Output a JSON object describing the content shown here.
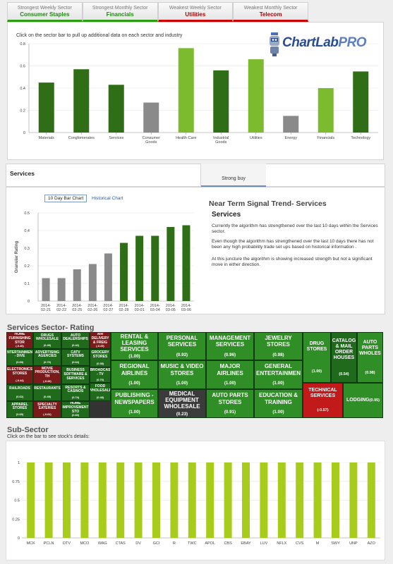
{
  "tabs": [
    {
      "caption": "Strongest Weekly Sector",
      "value": "Consumer Staples",
      "kind": "strong"
    },
    {
      "caption": "Strongest Monthly Sector",
      "value": "Financials",
      "kind": "strong"
    },
    {
      "caption": "Weakest Weekly Sector",
      "value": "Utilities",
      "kind": "weak"
    },
    {
      "caption": "Weakest Monthly Sector",
      "value": "Telecom",
      "kind": "weak"
    }
  ],
  "sector_panel": {
    "hint": "Click on the sector bar to pull up additional data on each sector and industry"
  },
  "logo": {
    "text_main": "ChartLab",
    "text_accent": "PRO"
  },
  "services_header": "Services",
  "strong_buy_tab": "Strong buy",
  "bar_chart_button": "10 Day Bar Chart",
  "historical_link": "Historical Chart",
  "near_term": {
    "title": "Near Term Signal Trend- Services",
    "subtitle": "Services",
    "p1": "Currently the algorithm has strengthened over the last 10 days within the Services sector.",
    "p2": "Even though the algorithm has strengthened over the last 10 days there has not been any high probability trade set ups based on historical information .",
    "p3": "At this juncture the algorithm is showing increased strength but not a significant move in either direction."
  },
  "rating_title": "Services Sector- Rating",
  "subsector_title": "Sub-Sector",
  "subsector_hint": "Click on the bar to see stock's details:",
  "colors": {
    "dark_green": "#2f6e17",
    "light_green": "#8cc63f",
    "grey": "#8a8a8a",
    "lime": "#a8cc1c"
  },
  "chart_data": [
    {
      "type": "bar",
      "categories": [
        "Materials",
        "Conglomerates",
        "Services",
        "Consumer Goods",
        "Health Care",
        "Industrial Goods",
        "Utilities",
        "Energy",
        "Financials",
        "Technology"
      ],
      "values": [
        0.45,
        0.57,
        0.43,
        0.27,
        0.76,
        0.56,
        0.66,
        0.15,
        0.4,
        0.55
      ],
      "bar_colors": [
        "#2f6e17",
        "#2f6e17",
        "#2f6e17",
        "#8a8a8a",
        "#7cbb2e",
        "#2f6e17",
        "#7cbb2e",
        "#8a8a8a",
        "#7cbb2e",
        "#2f6e17"
      ],
      "ylim": [
        0,
        0.8
      ],
      "yticks": [
        "0",
        "0.2",
        "0.4",
        "0.6",
        "0.8"
      ],
      "title": "",
      "xlabel": "",
      "ylabel": ""
    },
    {
      "type": "bar",
      "categories": [
        "2014-02-21",
        "2014-02-22",
        "2014-02-25",
        "2014-02-26",
        "2014-02-27",
        "2014-02-28",
        "2014-03-01",
        "2014-03-04",
        "2014-03-05",
        "2014-03-06"
      ],
      "tick_top": [
        "2014-",
        "2014-",
        "2014-",
        "2014-",
        "2014-",
        "2014-",
        "2014-",
        "2014-",
        "2014-",
        "2014-"
      ],
      "tick_bottom": [
        "02-21",
        "02-22",
        "02-25",
        "02-26",
        "02-27",
        "02-28",
        "03-01",
        "03-04",
        "03-05",
        "03-06"
      ],
      "values": [
        0.13,
        0.13,
        0.18,
        0.21,
        0.27,
        0.33,
        0.37,
        0.37,
        0.42,
        0.43
      ],
      "bar_colors": [
        "#8a8a8a",
        "#8a8a8a",
        "#8a8a8a",
        "#8a8a8a",
        "#8a8a8a",
        "#2f6e17",
        "#2f6e17",
        "#2f6e17",
        "#2f6e17",
        "#2f6e17"
      ],
      "ylim": [
        0,
        0.5
      ],
      "yticks": [
        "0",
        "0.1",
        "0.2",
        "0.3",
        "0.4",
        "0.5"
      ],
      "ylabel": "Granular Rating",
      "title": "",
      "xlabel": ""
    },
    {
      "type": "bar",
      "categories": [
        "MCK",
        "PCLN",
        "DTV",
        "MCO",
        "WAG",
        "CTAS",
        "DV",
        "GCI",
        "R",
        "TWC",
        "APOL",
        "CBS",
        "EBAY",
        "LUV",
        "NFLX",
        "CVS",
        "M",
        "SWY",
        "UNP",
        "AZO"
      ],
      "values": [
        1,
        1,
        1,
        1,
        1,
        1,
        1,
        1,
        1,
        1,
        1,
        1,
        1,
        1,
        1,
        1,
        1,
        1,
        1,
        1
      ],
      "ylim": [
        0,
        1
      ],
      "yticks": [
        "0",
        "0.25",
        "0.5",
        "0.75",
        "1"
      ],
      "title": "",
      "xlabel": "",
      "ylabel": ""
    }
  ],
  "treemap": [
    {
      "label": "HOME FURNISHING STOR",
      "rating": "(-0.46)",
      "color": "red-dark"
    },
    {
      "label": "DRUGS WHOLESALE",
      "rating": "(0.49)",
      "color": "g-dark"
    },
    {
      "label": "AUTO DEALERSHIPS",
      "rating": "(0.42)",
      "color": "g-dark"
    },
    {
      "label": "AIR DELIVERY & FREIG",
      "rating": "(-0.25)",
      "color": "red-dark"
    },
    {
      "label": "ENTERTAINMENT - DIVE",
      "rating": "(0.69)",
      "color": "g-dark"
    },
    {
      "label": "ADVERTISING AGENCIES",
      "rating": "(0.70)",
      "color": "g-dark"
    },
    {
      "label": "CATV SYSTEMS",
      "rating": "(0.64)",
      "color": "g-dark"
    },
    {
      "label": "GROCERY STORES",
      "rating": "(0.38)",
      "color": "g-dark"
    },
    {
      "label": "ELECTRONICS STORES",
      "rating": "(-0.44)",
      "color": "red-dark"
    },
    {
      "label": "MOVIE PRODUCTION, TH",
      "rating": "(-0.26)",
      "color": "red-dark"
    },
    {
      "label": "BUSINESS SOFTWARE & SERVICES",
      "rating": "",
      "color": "g-dark"
    },
    {
      "label": "BROADCAS - TV",
      "rating": "(0.70)",
      "color": "g-dark"
    },
    {
      "label": "RAILROADS",
      "rating": "(0.62)",
      "color": "g-dark"
    },
    {
      "label": "RESTAURANTS",
      "rating": "(0.49)",
      "color": "g-dark"
    },
    {
      "label": "RESORTS & CASINOS",
      "rating": "(0.74)",
      "color": "g-dark"
    },
    {
      "label": "FOOD WHOLESALE",
      "rating": "(0.48)",
      "color": "g-dark"
    },
    {
      "label": "APPAREL STORES",
      "rating": "(0.69)",
      "color": "g-dark"
    },
    {
      "label": "SPECIALTY EATERIES",
      "rating": "(-0.62)",
      "color": "red-dark"
    },
    {
      "label": "HOME IMPROVEMENT STO",
      "rating": "(0.83)",
      "color": "g-dark"
    },
    {
      "label": "RENTAL & LEASING SERVICES",
      "rating": "(1.00)",
      "color": "g-mid"
    },
    {
      "label": "PERSONAL SERVICES",
      "rating": "(0.92)",
      "color": "g-mid"
    },
    {
      "label": "MANAGEMENT SERVICES",
      "rating": "(0.96)",
      "color": "g-mid"
    },
    {
      "label": "JEWELRY STORES",
      "rating": "(0.98)",
      "color": "g-mid"
    },
    {
      "label": "DRUG STORES",
      "rating": "(1.00)",
      "color": "g-mid"
    },
    {
      "label": "CATALOG & MAIL ORDER HOUSES",
      "rating": "(0.54)",
      "color": "g-dark"
    },
    {
      "label": "AUTO PARTS WHOLES",
      "rating": "(0.98)",
      "color": "g-mid"
    },
    {
      "label": "REGIONAL AIRLINES",
      "rating": "(1.00)",
      "color": "g-mid"
    },
    {
      "label": "MUSIC & VIDEO STORES",
      "rating": "(1.00)",
      "color": "g-mid"
    },
    {
      "label": "MAJOR AIRLINES",
      "rating": "(1.00)",
      "color": "g-mid"
    },
    {
      "label": "GENERAL ENTERTAINMEN",
      "rating": "(1.00)",
      "color": "g-mid"
    },
    {
      "label": "PUBLISHING - NEWSPAPERS",
      "rating": "(1.00)",
      "color": "g-mid"
    },
    {
      "label": "MEDICAL EQUIPMENT WHOLESALE",
      "rating": "(0.23)",
      "color": "grey-dark"
    },
    {
      "label": "AUTO PARTS STORES",
      "rating": "(0.91)",
      "color": "g-mid"
    },
    {
      "label": "EDUCATION & TRAINING",
      "rating": "(1.00)",
      "color": "g-mid"
    },
    {
      "label": "TECHNICAL SERVICES",
      "rating": "(-0.57)",
      "color": "red"
    },
    {
      "label": "LODGING",
      "rating": "(0.95)",
      "color": "g-mid"
    }
  ]
}
